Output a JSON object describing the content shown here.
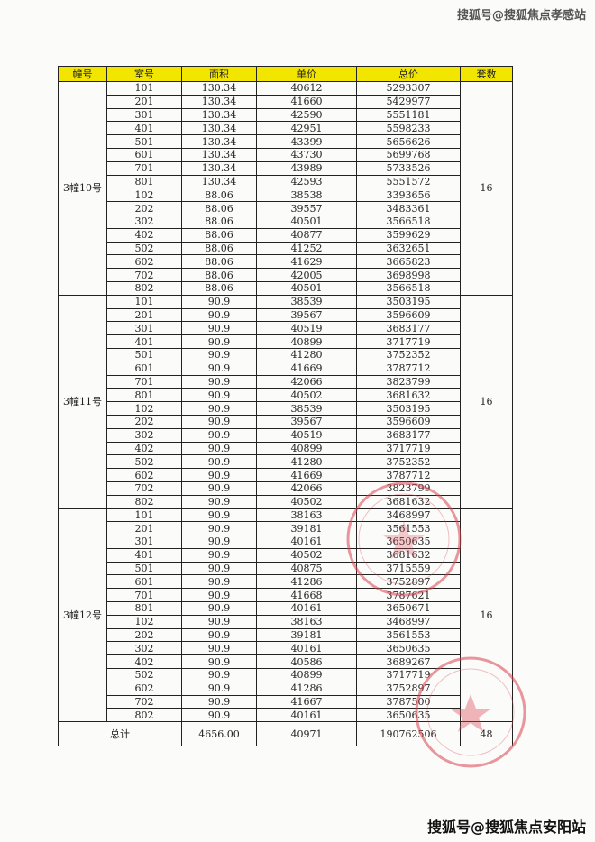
{
  "watermark_top": "搜狐号@搜狐焦点孝感站",
  "watermark_bottom": "搜狐号@搜狐焦点安阳站",
  "headers": [
    "幢号",
    "室号",
    "面积",
    "单价",
    "总价",
    "套数"
  ],
  "buildings": [
    {
      "name": "3幢10号",
      "count": "16",
      "rows": [
        [
          "101",
          "130.34",
          "40612",
          "5293307"
        ],
        [
          "201",
          "130.34",
          "41660",
          "5429977"
        ],
        [
          "301",
          "130.34",
          "42590",
          "5551181"
        ],
        [
          "401",
          "130.34",
          "42951",
          "5598233"
        ],
        [
          "501",
          "130.34",
          "43399",
          "5656626"
        ],
        [
          "601",
          "130.34",
          "43730",
          "5699768"
        ],
        [
          "701",
          "130.34",
          "43989",
          "5733526"
        ],
        [
          "801",
          "130.34",
          "42593",
          "5551572"
        ],
        [
          "102",
          "88.06",
          "38538",
          "3393656"
        ],
        [
          "202",
          "88.06",
          "39557",
          "3483361"
        ],
        [
          "302",
          "88.06",
          "40501",
          "3566518"
        ],
        [
          "402",
          "88.06",
          "40877",
          "3599629"
        ],
        [
          "502",
          "88.06",
          "41252",
          "3632651"
        ],
        [
          "602",
          "88.06",
          "41629",
          "3665823"
        ],
        [
          "702",
          "88.06",
          "42005",
          "3698998"
        ],
        [
          "802",
          "88.06",
          "40501",
          "3566518"
        ]
      ]
    },
    {
      "name": "3幢11号",
      "count": "16",
      "rows": [
        [
          "101",
          "90.9",
          "38539",
          "3503195"
        ],
        [
          "201",
          "90.9",
          "39567",
          "3596609"
        ],
        [
          "301",
          "90.9",
          "40519",
          "3683177"
        ],
        [
          "401",
          "90.9",
          "40899",
          "3717719"
        ],
        [
          "501",
          "90.9",
          "41280",
          "3752352"
        ],
        [
          "601",
          "90.9",
          "41669",
          "3787712"
        ],
        [
          "701",
          "90.9",
          "42066",
          "3823799"
        ],
        [
          "801",
          "90.9",
          "40502",
          "3681632"
        ],
        [
          "102",
          "90.9",
          "38539",
          "3503195"
        ],
        [
          "202",
          "90.9",
          "39567",
          "3596609"
        ],
        [
          "302",
          "90.9",
          "40519",
          "3683177"
        ],
        [
          "402",
          "90.9",
          "40899",
          "3717719"
        ],
        [
          "502",
          "90.9",
          "41280",
          "3752352"
        ],
        [
          "602",
          "90.9",
          "41669",
          "3787712"
        ],
        [
          "702",
          "90.9",
          "42066",
          "3823799"
        ],
        [
          "802",
          "90.9",
          "40502",
          "3681632"
        ]
      ]
    },
    {
      "name": "3幢12号",
      "count": "16",
      "rows": [
        [
          "101",
          "90.9",
          "38163",
          "3468997"
        ],
        [
          "201",
          "90.9",
          "39181",
          "3561553"
        ],
        [
          "301",
          "90.9",
          "40161",
          "3650635"
        ],
        [
          "401",
          "90.9",
          "40502",
          "3681632"
        ],
        [
          "501",
          "90.9",
          "40875",
          "3715559"
        ],
        [
          "601",
          "90.9",
          "41286",
          "3752897"
        ],
        [
          "701",
          "90.9",
          "41668",
          "3787621"
        ],
        [
          "801",
          "90.9",
          "40161",
          "3650671"
        ],
        [
          "102",
          "90.9",
          "38163",
          "3468997"
        ],
        [
          "202",
          "90.9",
          "39181",
          "3561553"
        ],
        [
          "302",
          "90.9",
          "40161",
          "3650635"
        ],
        [
          "402",
          "90.9",
          "40586",
          "3689267"
        ],
        [
          "502",
          "90.9",
          "40899",
          "3717719"
        ],
        [
          "602",
          "90.9",
          "41286",
          "3752897"
        ],
        [
          "702",
          "90.9",
          "41667",
          "3787500"
        ],
        [
          "802",
          "90.9",
          "40161",
          "3650635"
        ]
      ]
    }
  ],
  "total": {
    "label": "总计",
    "area": "4656.00",
    "unit_price": "40971",
    "total_price": "190762506",
    "count": "48"
  },
  "stamp_color": "#d9434f"
}
